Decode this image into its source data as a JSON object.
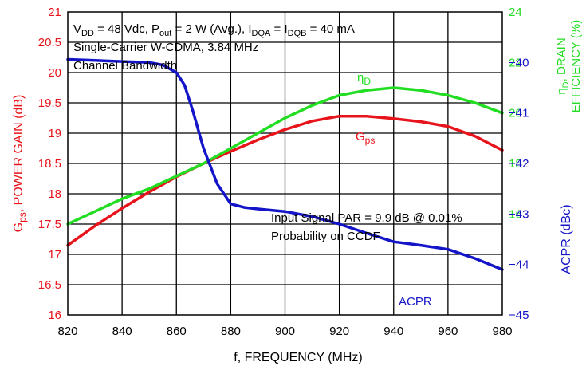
{
  "chart_data": {
    "type": "line",
    "xlabel": "f, FREQUENCY (MHz)",
    "x_ticks": [
      820,
      840,
      860,
      880,
      900,
      920,
      940,
      960,
      980
    ],
    "xlim": [
      820,
      980
    ],
    "grid": true,
    "left_axis": {
      "label_main": "G",
      "label_sub": "ps",
      "label_rest": ", POWER GAIN (dB)",
      "color": "#e8141c",
      "ylim": [
        16,
        21
      ],
      "ticks": [
        "16",
        "16.5",
        "17",
        "17.5",
        "18",
        "18.5",
        "19",
        "19.5",
        "20",
        "20.5",
        "21"
      ]
    },
    "right_axis_efficiency": {
      "label_line1_main": "η",
      "label_line1_sub": "D",
      "label_line1_rest": ", DRAIN",
      "label_line2": "EFFICIENCY (%)",
      "color": "#22dd22",
      "ylim": [
        12,
        24
      ],
      "ticks": [
        "16",
        "18",
        "20",
        "22",
        "24"
      ]
    },
    "right_axis_acpr": {
      "label": "ACPR (dBc)",
      "color": "#1414c8",
      "ylim": [
        -45,
        -39
      ],
      "ticks": [
        "−40",
        "−41",
        "−42",
        "−43",
        "−44",
        "−45"
      ]
    },
    "series": [
      {
        "name_main": "G",
        "name_sub": "ps",
        "axis": "left",
        "color": "#e8141c",
        "x": [
          820,
          830,
          840,
          850,
          860,
          870,
          880,
          890,
          900,
          910,
          920,
          930,
          940,
          950,
          960,
          970,
          980
        ],
        "y": [
          17.15,
          17.47,
          17.76,
          18.03,
          18.28,
          18.5,
          18.7,
          18.89,
          19.06,
          19.2,
          19.28,
          19.28,
          19.24,
          19.19,
          19.11,
          18.95,
          18.72
        ]
      },
      {
        "name_main": "η",
        "name_sub": "D",
        "axis": "right_efficiency",
        "color": "#22dd22",
        "x": [
          820,
          830,
          840,
          850,
          860,
          870,
          880,
          890,
          900,
          910,
          920,
          930,
          940,
          950,
          960,
          970,
          980
        ],
        "y": [
          15.6,
          16.1,
          16.6,
          17.0,
          17.5,
          18.0,
          18.6,
          19.2,
          19.8,
          20.3,
          20.7,
          20.9,
          21.0,
          20.9,
          20.7,
          20.4,
          20.0
        ]
      },
      {
        "name": "ACPR",
        "axis": "right_acpr",
        "color": "#1414c8",
        "x": [
          820,
          830,
          840,
          850,
          855,
          860,
          863,
          866,
          870,
          875,
          880,
          885,
          890,
          900,
          910,
          920,
          930,
          940,
          950,
          960,
          970,
          980
        ],
        "y": [
          -39.94,
          -39.96,
          -39.98,
          -40.0,
          -40.05,
          -40.2,
          -40.45,
          -40.95,
          -41.7,
          -42.4,
          -42.8,
          -42.87,
          -42.9,
          -42.95,
          -43.05,
          -43.2,
          -43.38,
          -43.55,
          -43.62,
          -43.7,
          -43.88,
          -44.1
        ]
      }
    ],
    "annotations": {
      "conditions_line1": {
        "parts": [
          {
            "t": "V"
          },
          {
            "t": "DD",
            "sub": true
          },
          {
            "t": " = 48 Vdc, P"
          },
          {
            "t": "out",
            "sub": true
          },
          {
            "t": " = 2 W (Avg.), I"
          },
          {
            "t": "DQA",
            "sub": true
          },
          {
            "t": " = I"
          },
          {
            "t": "DQB",
            "sub": true
          },
          {
            "t": " = 40 mA"
          }
        ]
      },
      "conditions_line2": "Single-Carrier W-CDMA, 3.84 MHz",
      "conditions_line3": "Channel Bandwidth",
      "par_line1": "Input Signal PAR = 9.9 dB @ 0.01%",
      "par_line2": "Probability on CCDF"
    }
  }
}
